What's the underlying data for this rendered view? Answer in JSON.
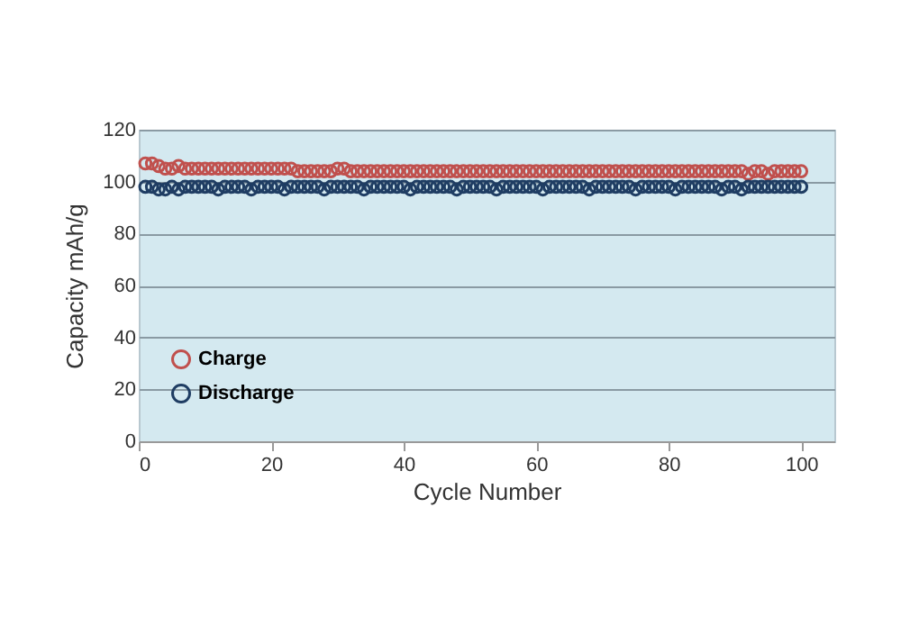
{
  "chart_data": {
    "type": "scatter",
    "xlabel": "Cycle Number",
    "ylabel": "Capacity mAh/g",
    "x": [
      1,
      2,
      3,
      4,
      5,
      6,
      7,
      8,
      9,
      10,
      11,
      12,
      13,
      14,
      15,
      16,
      17,
      18,
      19,
      20,
      21,
      22,
      23,
      24,
      25,
      26,
      27,
      28,
      29,
      30,
      31,
      32,
      33,
      34,
      35,
      36,
      37,
      38,
      39,
      40,
      41,
      42,
      43,
      44,
      45,
      46,
      47,
      48,
      49,
      50,
      51,
      52,
      53,
      54,
      55,
      56,
      57,
      58,
      59,
      60,
      61,
      62,
      63,
      64,
      65,
      66,
      67,
      68,
      69,
      70,
      71,
      72,
      73,
      74,
      75,
      76,
      77,
      78,
      79,
      80,
      81,
      82,
      83,
      84,
      85,
      86,
      87,
      88,
      89,
      90,
      91,
      92,
      93,
      94,
      95,
      96,
      97,
      98,
      99,
      100
    ],
    "series": [
      {
        "name": "Charge",
        "color": "#c0504d",
        "values": [
          107,
          107,
          106,
          105,
          105,
          106,
          105,
          105,
          105,
          105,
          105,
          105,
          105,
          105,
          105,
          105,
          105,
          105,
          105,
          105,
          105,
          105,
          105,
          104,
          104,
          104,
          104,
          104,
          104,
          105,
          105,
          104,
          104,
          104,
          104,
          104,
          104,
          104,
          104,
          104,
          104,
          104,
          104,
          104,
          104,
          104,
          104,
          104,
          104,
          104,
          104,
          104,
          104,
          104,
          104,
          104,
          104,
          104,
          104,
          104,
          104,
          104,
          104,
          104,
          104,
          104,
          104,
          104,
          104,
          104,
          104,
          104,
          104,
          104,
          104,
          104,
          104,
          104,
          104,
          104,
          104,
          104,
          104,
          104,
          104,
          104,
          104,
          104,
          104,
          104,
          104,
          103,
          104,
          104,
          103,
          104,
          104,
          104,
          104,
          104
        ]
      },
      {
        "name": "Discharge",
        "color": "#1f3d63",
        "values": [
          98,
          98,
          97,
          97,
          98,
          97,
          98,
          98,
          98,
          98,
          98,
          97,
          98,
          98,
          98,
          98,
          97,
          98,
          98,
          98,
          98,
          97,
          98,
          98,
          98,
          98,
          98,
          97,
          98,
          98,
          98,
          98,
          98,
          97,
          98,
          98,
          98,
          98,
          98,
          98,
          97,
          98,
          98,
          98,
          98,
          98,
          98,
          97,
          98,
          98,
          98,
          98,
          98,
          97,
          98,
          98,
          98,
          98,
          98,
          98,
          97,
          98,
          98,
          98,
          98,
          98,
          98,
          97,
          98,
          98,
          98,
          98,
          98,
          98,
          97,
          98,
          98,
          98,
          98,
          98,
          97,
          98,
          98,
          98,
          98,
          98,
          98,
          97,
          98,
          98,
          97,
          98,
          98,
          98,
          98,
          98,
          98,
          98,
          98,
          98
        ]
      }
    ],
    "xlim": [
      0,
      105
    ],
    "xticks": [
      0,
      20,
      40,
      60,
      80,
      100
    ],
    "ylim": [
      0,
      120
    ],
    "yticks": [
      0,
      20,
      40,
      60,
      80,
      100,
      120
    ],
    "grid": "y",
    "legend": "bottom left",
    "marker": "circle"
  }
}
